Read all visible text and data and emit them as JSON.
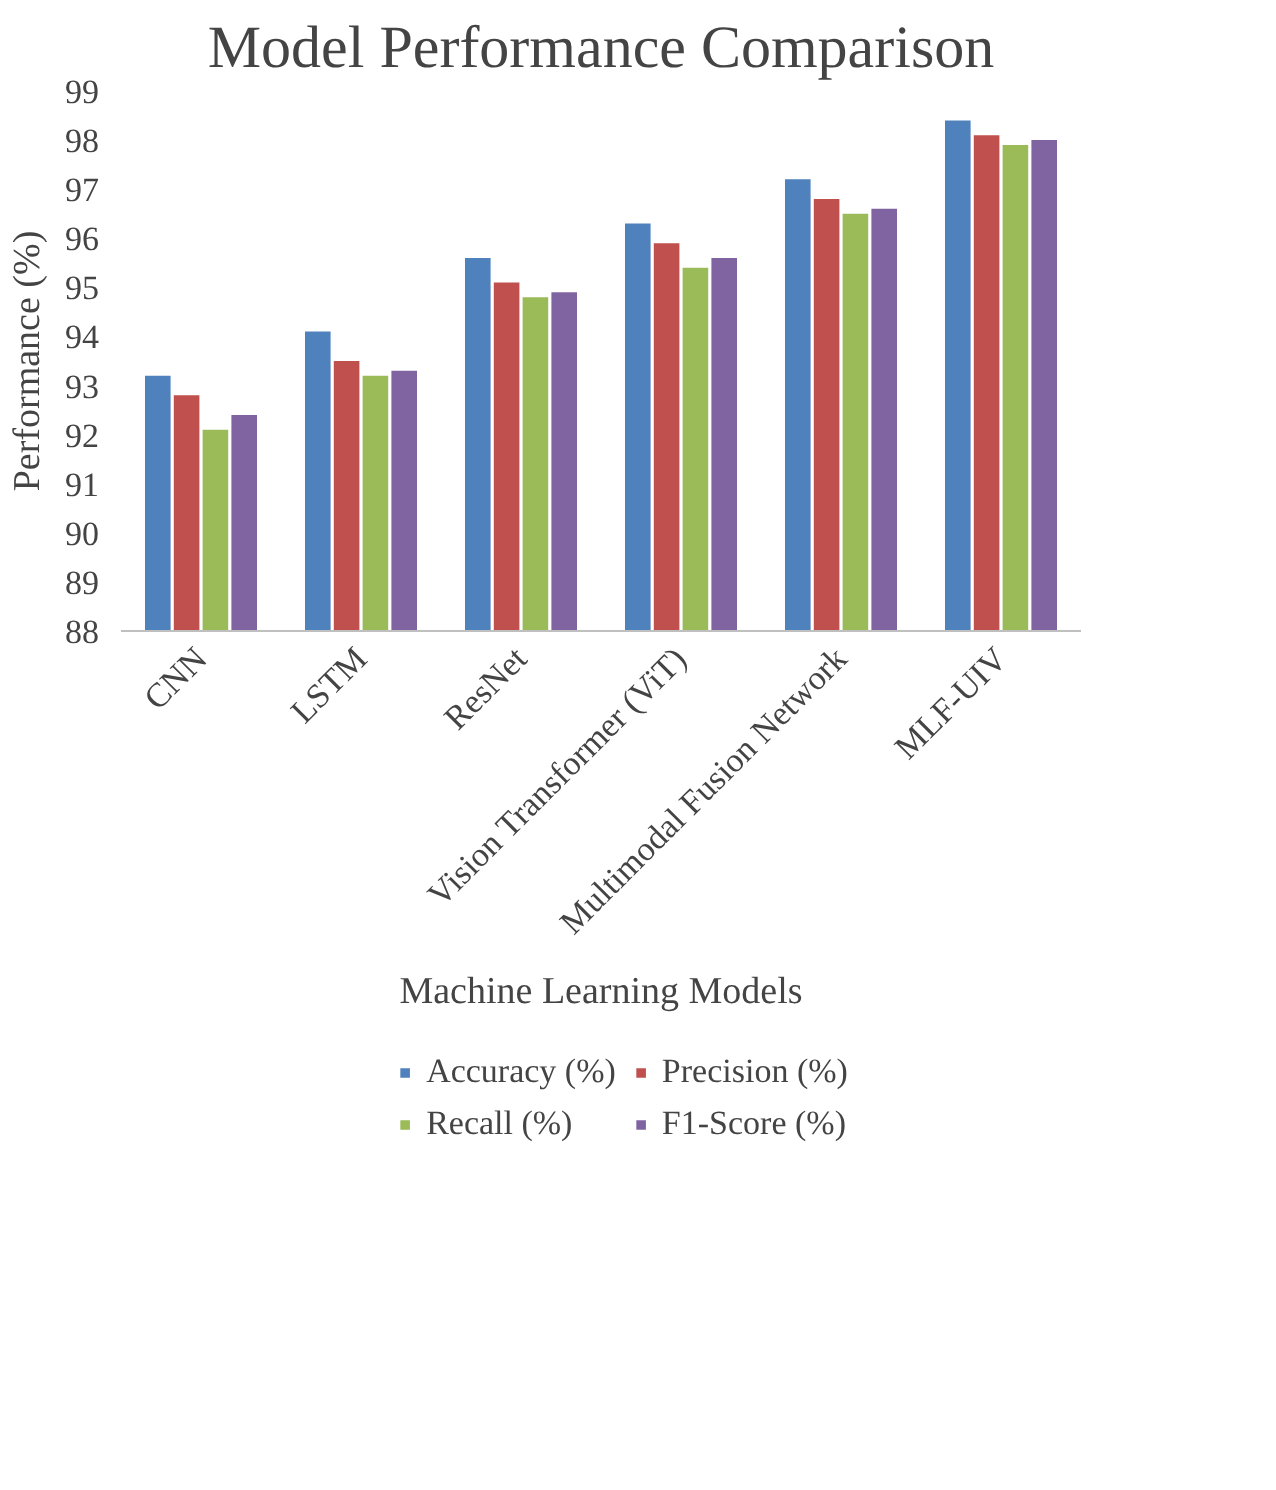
{
  "chart_data": {
    "type": "bar",
    "title": "Model Performance Comparison",
    "xlabel": "Machine Learning Models",
    "ylabel": "Performance (%)",
    "categories": [
      "CNN",
      "LSTM",
      "ResNet",
      "Vision Transformer (ViT)",
      "Multimodal Fusion Network",
      "MLF-UIV"
    ],
    "series": [
      {
        "name": "Accuracy (%)",
        "color": "#4f81bd",
        "values": [
          93.2,
          94.1,
          95.6,
          96.3,
          97.2,
          98.4
        ]
      },
      {
        "name": "Precision (%)",
        "color": "#c0504d",
        "values": [
          92.8,
          93.5,
          95.1,
          95.9,
          96.8,
          98.1
        ]
      },
      {
        "name": "Recall (%)",
        "color": "#9bbb59",
        "values": [
          92.1,
          93.2,
          94.8,
          95.4,
          96.5,
          97.9
        ]
      },
      {
        "name": "F1-Score (%)",
        "color": "#8064a2",
        "values": [
          92.4,
          93.3,
          94.9,
          95.6,
          96.6,
          98.0
        ]
      }
    ],
    "ylim": [
      88,
      99
    ],
    "yticks": [
      88,
      89,
      90,
      91,
      92,
      93,
      94,
      95,
      96,
      97,
      98,
      99
    ],
    "grid": false,
    "legend": "bottom"
  }
}
